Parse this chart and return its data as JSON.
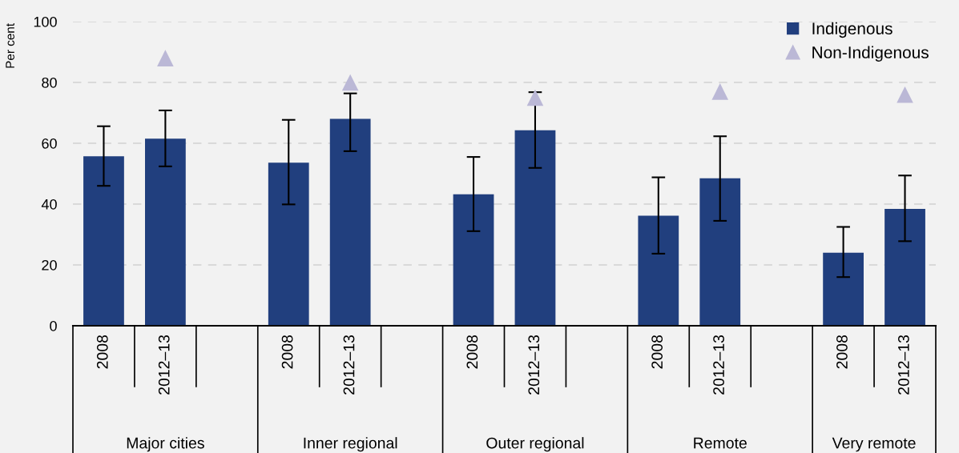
{
  "chart_data": {
    "type": "bar",
    "ylabel": "Per cent",
    "categories": [
      "2008",
      "2012–13",
      null,
      "2008",
      "2012–13",
      null,
      "2008",
      "2012–13",
      null,
      "2008",
      "2012–13",
      null,
      "2008",
      "2012–13"
    ],
    "series": [
      {
        "name": "Indigenous",
        "color": "#213f7e",
        "values": [
          55.7,
          61.5,
          null,
          53.6,
          68.0,
          null,
          43.2,
          64.3,
          null,
          36.2,
          48.5,
          null,
          24.0,
          38.4
        ],
        "errors": [
          [
            46.0,
            65.6
          ],
          [
            52.4,
            70.8
          ],
          null,
          [
            39.9,
            67.7
          ],
          [
            57.4,
            76.4
          ],
          null,
          [
            31.1,
            55.5
          ],
          [
            51.9,
            76.8
          ],
          null,
          [
            23.7,
            48.8
          ],
          [
            34.5,
            62.3
          ],
          null,
          [
            16.0,
            32.5
          ],
          [
            27.8,
            49.4
          ]
        ]
      },
      {
        "name": "Non-Indigenous",
        "type": "scatter",
        "color": "#bbb8d6",
        "marker": "triangle",
        "values": [
          null,
          88,
          null,
          null,
          80,
          null,
          null,
          75,
          null,
          null,
          77,
          null,
          null,
          76
        ]
      }
    ],
    "annotations": [
      "Major cities",
      "Inner regional",
      "Outer regional",
      "Remote",
      "Very remote"
    ],
    "ylim": [
      0,
      100
    ],
    "yticks": [
      0,
      20,
      40,
      60,
      80,
      100
    ],
    "grid": "y",
    "legend": "top right"
  }
}
